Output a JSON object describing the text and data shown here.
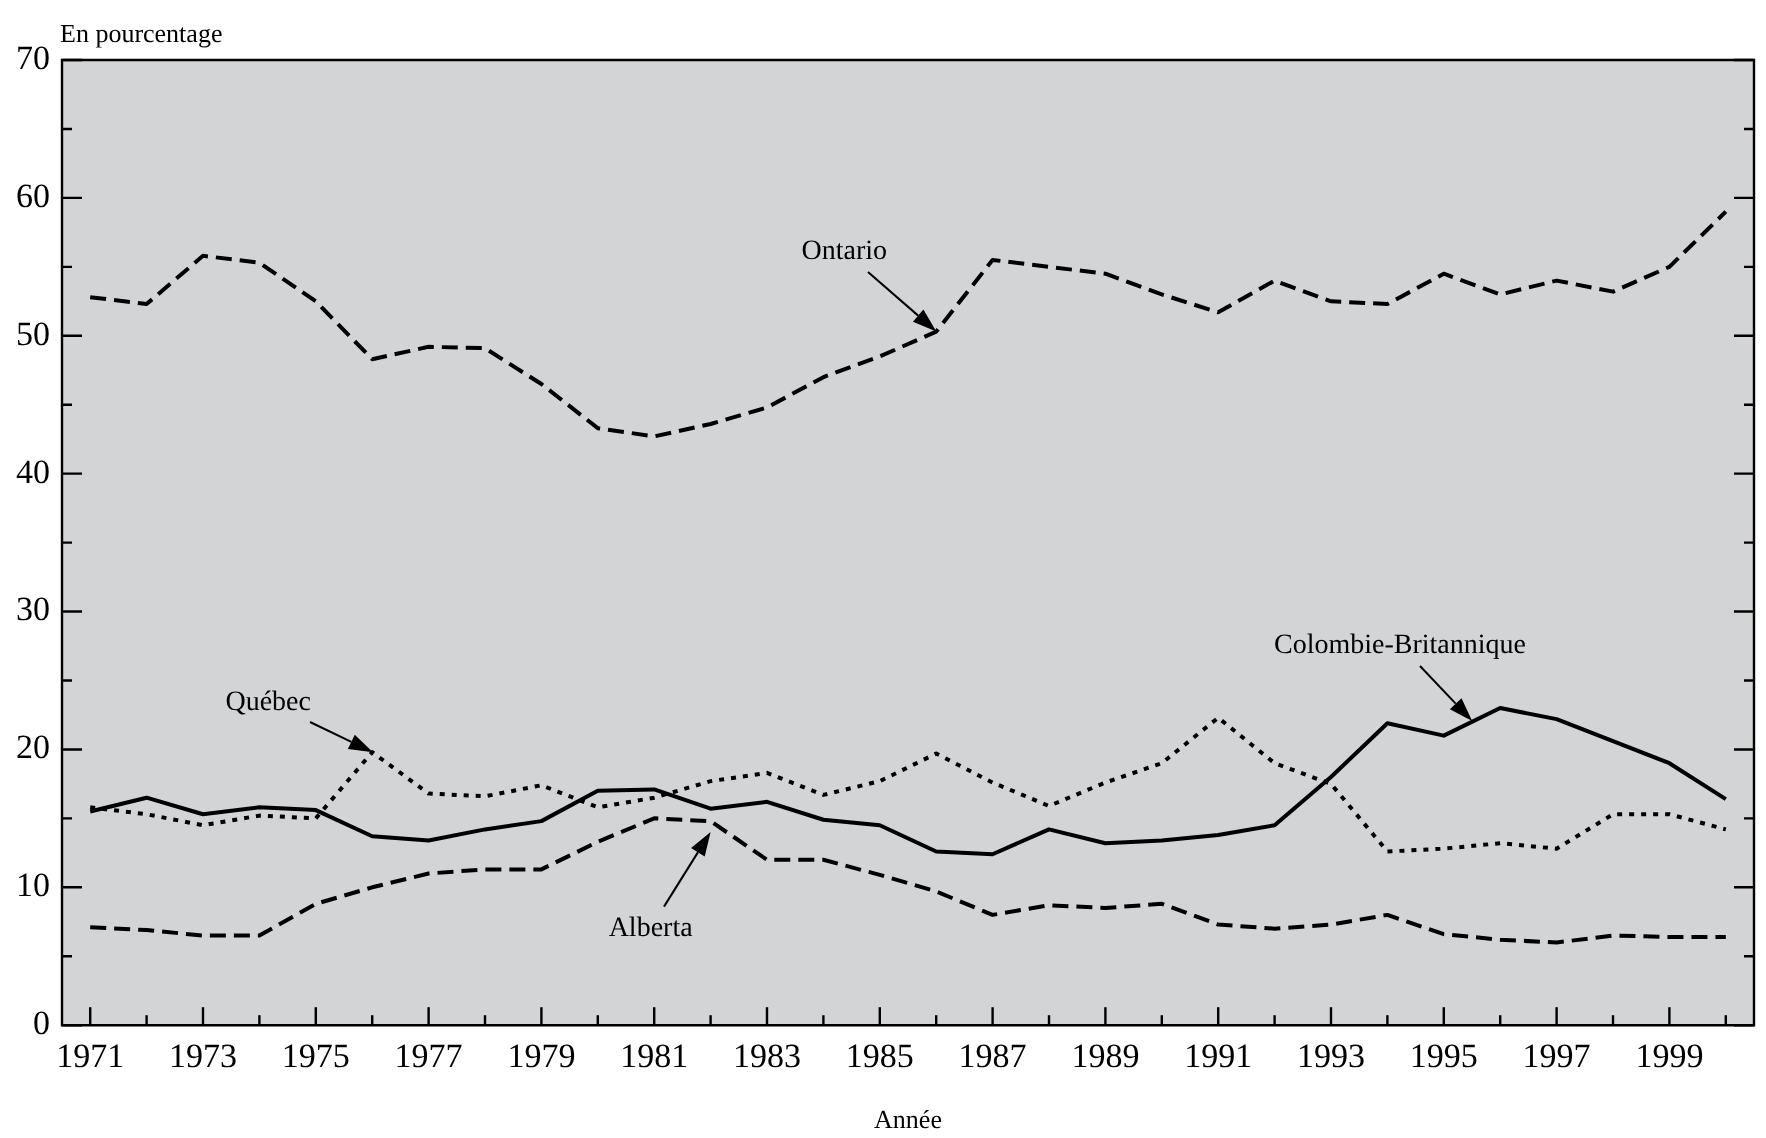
{
  "chart_data": {
    "type": "line",
    "ylabel": "En pourcentage",
    "xlabel": "Année",
    "x": [
      1971,
      1972,
      1973,
      1974,
      1975,
      1976,
      1977,
      1978,
      1979,
      1980,
      1981,
      1982,
      1983,
      1984,
      1985,
      1986,
      1987,
      1988,
      1989,
      1990,
      1991,
      1992,
      1993,
      1994,
      1995,
      1996,
      1997,
      1998,
      1999,
      2000
    ],
    "xlim": [
      1970.5,
      2000.5
    ],
    "xticks": [
      1971,
      {
        "value": 1972,
        "label": null
      },
      1973,
      {
        "value": 1974,
        "label": null
      },
      1975,
      {
        "value": 1976,
        "label": null
      },
      1977,
      {
        "value": 1978,
        "label": null
      },
      1979,
      {
        "value": 1980,
        "label": null
      },
      1981,
      {
        "value": 1982,
        "label": null
      },
      1983,
      {
        "value": 1984,
        "label": null
      },
      1985,
      {
        "value": 1986,
        "label": null
      },
      1987,
      {
        "value": 1988,
        "label": null
      },
      1989,
      {
        "value": 1990,
        "label": null
      },
      1991,
      {
        "value": 1992,
        "label": null
      },
      1993,
      {
        "value": 1994,
        "label": null
      },
      1995,
      {
        "value": 1996,
        "label": null
      },
      1997,
      {
        "value": 1998,
        "label": null
      },
      1999,
      {
        "value": 2000,
        "label": null
      }
    ],
    "ylim": [
      0,
      70
    ],
    "yticks": [
      0,
      {
        "value": 5,
        "label": null
      },
      10,
      {
        "value": 15,
        "label": null
      },
      20,
      {
        "value": 25,
        "label": null
      },
      30,
      {
        "value": 35,
        "label": null
      },
      40,
      {
        "value": 45,
        "label": null
      },
      50,
      {
        "value": 55,
        "label": null
      },
      60,
      {
        "value": 65,
        "label": null
      },
      70
    ],
    "grid": false,
    "legend": false,
    "marker": "none",
    "series": [
      {
        "color": "#000000",
        "line_style": "dashed",
        "values": [
          52.8,
          52.3,
          55.8,
          55.3,
          52.5,
          48.3,
          49.2,
          49.1,
          46.5,
          43.3,
          42.7,
          43.6,
          44.8,
          47.0,
          48.5,
          50.3,
          55.5,
          55.0,
          54.5,
          53.0,
          51.7,
          54.0,
          52.5,
          52.3,
          54.5,
          53.0,
          54.0,
          53.2,
          55.0,
          59.0
        ]
      },
      {
        "color": "#000000",
        "line_style": "dotted",
        "values": [
          15.8,
          15.3,
          14.5,
          15.2,
          15.0,
          19.8,
          16.8,
          16.6,
          17.4,
          15.8,
          16.5,
          17.7,
          18.3,
          16.7,
          17.7,
          19.7,
          17.6,
          15.9,
          17.6,
          19.0,
          22.3,
          19.0,
          17.5,
          12.6,
          12.8,
          13.2,
          12.8,
          15.3,
          15.3,
          14.2
        ]
      },
      {
        "color": "#000000",
        "line_style": "solid",
        "values": [
          15.5,
          16.5,
          15.3,
          15.8,
          15.6,
          13.7,
          13.4,
          14.2,
          14.8,
          17.0,
          17.1,
          15.7,
          16.2,
          14.9,
          14.5,
          12.6,
          12.4,
          14.2,
          13.2,
          13.4,
          13.8,
          14.5,
          18.0,
          21.9,
          21.0,
          23.0,
          22.2,
          20.6,
          19.0,
          16.4
        ]
      },
      {
        "color": "#000000",
        "line_style": "dashed",
        "values": [
          7.1,
          6.9,
          6.5,
          6.5,
          8.8,
          10.0,
          11.0,
          11.3,
          11.3,
          13.3,
          15.0,
          14.8,
          12.0,
          12.0,
          10.9,
          9.7,
          8.0,
          8.7,
          8.5,
          8.8,
          7.3,
          7.0,
          7.3,
          8.0,
          6.6,
          6.2,
          6.0,
          6.5,
          6.4,
          6.4
        ]
      }
    ],
    "annotations": [
      {
        "text": "Ontario",
        "x": 1986,
        "y": 50.3
      },
      {
        "text": "Québec",
        "x": 1976,
        "y": 19.8
      },
      {
        "text": "Colombie-Britannique",
        "x": 1995.5,
        "y": 22.0
      },
      {
        "text": "Alberta",
        "x": 1982,
        "y": 14.0
      }
    ]
  }
}
